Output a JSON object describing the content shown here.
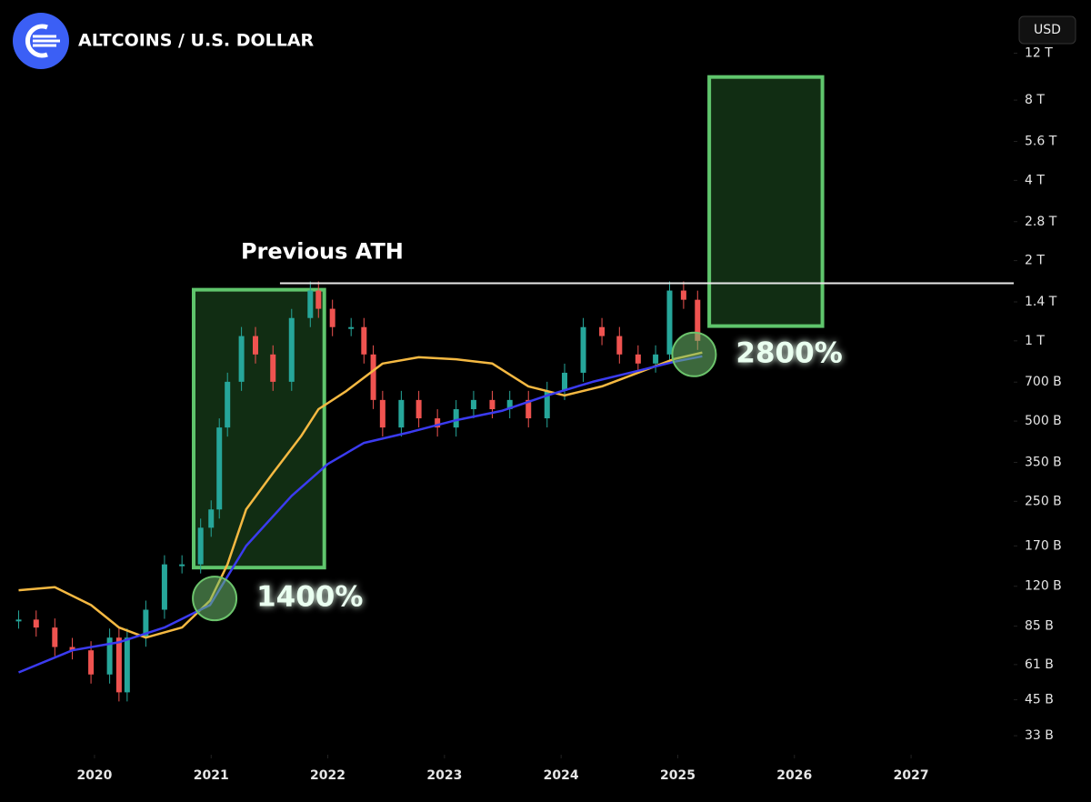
{
  "chart_data": {
    "type": "candlestick",
    "title": "ALTCOINS / U.S. DOLLAR",
    "currency": "USD",
    "log_scale": true,
    "xlim": [
      2019.19,
      2027.88
    ],
    "xticks": [
      2020,
      2021,
      2022,
      2023,
      2024,
      2025,
      2026,
      2027
    ],
    "ylim": [
      28,
      19000
    ],
    "yticks": [
      {
        "value": 33,
        "label": "33 B"
      },
      {
        "value": 45,
        "label": "45 B"
      },
      {
        "value": 61,
        "label": "61 B"
      },
      {
        "value": 85,
        "label": "85 B"
      },
      {
        "value": 120,
        "label": "120 B"
      },
      {
        "value": 170,
        "label": "170 B"
      },
      {
        "value": 250,
        "label": "250 B"
      },
      {
        "value": 350,
        "label": "350 B"
      },
      {
        "value": 500,
        "label": "500 B"
      },
      {
        "value": 700,
        "label": "700 B"
      },
      {
        "value": 1000,
        "label": "1 T"
      },
      {
        "value": 1400,
        "label": "1.4 T"
      },
      {
        "value": 2000,
        "label": "2 T"
      },
      {
        "value": 2800,
        "label": "2.8 T"
      },
      {
        "value": 4000,
        "label": "4 T"
      },
      {
        "value": 5600,
        "label": "5.6 T"
      },
      {
        "value": 8000,
        "label": "8 T"
      },
      {
        "value": 12000,
        "label": "12 T"
      }
    ],
    "series": [
      {
        "kind": "candles",
        "up_color": "#26a69a",
        "down_color": "#ef5350",
        "x": [
          2019.35,
          2019.5,
          2019.66,
          2019.81,
          2019.97,
          2020.13,
          2020.21,
          2020.28,
          2020.44,
          2020.6,
          2020.75,
          2020.91,
          2021.0,
          2021.07,
          2021.14,
          2021.26,
          2021.38,
          2021.53,
          2021.69,
          2021.85,
          2021.92,
          2022.04,
          2022.2,
          2022.31,
          2022.39,
          2022.47,
          2022.63,
          2022.78,
          2022.94,
          2023.1,
          2023.25,
          2023.41,
          2023.56,
          2023.72,
          2023.88,
          2024.03,
          2024.19,
          2024.35,
          2024.5,
          2024.66,
          2024.81,
          2024.93,
          2025.05,
          2025.17
        ],
        "values": [
          90,
          84,
          71,
          69,
          56,
          77,
          48,
          77,
          98,
          145,
          145,
          199,
          233,
          473,
          702,
          1042,
          889,
          702,
          1218,
          1544,
          1319,
          1126,
          1126,
          889,
          600,
          473,
          600,
          512,
          473,
          554,
          600,
          554,
          600,
          512,
          649,
          759,
          1126,
          1042,
          889,
          822,
          889,
          1544,
          1426,
          1000
        ]
      },
      {
        "kind": "line",
        "color": "#f5b942",
        "x": [
          2019.35,
          2019.66,
          2019.97,
          2020.21,
          2020.44,
          2020.75,
          2020.99,
          2021.14,
          2021.3,
          2021.53,
          2021.77,
          2021.92,
          2022.16,
          2022.47,
          2022.78,
          2023.1,
          2023.41,
          2023.72,
          2024.03,
          2024.35,
          2024.66,
          2024.97,
          2025.21
        ],
        "values": [
          116,
          119,
          102,
          84,
          77,
          84,
          106,
          145,
          233,
          319,
          438,
          554,
          649,
          822,
          868,
          853,
          822,
          675,
          624,
          675,
          759,
          855,
          904
        ]
      },
      {
        "kind": "line",
        "color": "#3b3bf0",
        "x": [
          2019.35,
          2019.81,
          2020.21,
          2020.6,
          2020.99,
          2021.3,
          2021.69,
          2022.0,
          2022.31,
          2022.71,
          2023.1,
          2023.49,
          2023.88,
          2024.27,
          2024.66,
          2024.97,
          2025.21
        ],
        "values": [
          57,
          69,
          74,
          84,
          102,
          170,
          262,
          345,
          414,
          455,
          504,
          546,
          624,
          702,
          772,
          835,
          875
        ]
      }
    ],
    "ath": {
      "label": "Previous ATH",
      "value": 1645,
      "x": [
        2021.59,
        2027.88
      ]
    },
    "boxes": [
      {
        "x": [
          2020.85,
          2021.97
        ],
        "y": [
          141,
          1555
        ]
      },
      {
        "x": [
          2025.27,
          2026.24
        ],
        "y": [
          1136,
          9770
        ]
      }
    ],
    "circles": [
      {
        "x": 2021.03,
        "y": 108,
        "label": "1400%"
      },
      {
        "x": 2025.14,
        "y": 889,
        "label": "2800%"
      }
    ]
  }
}
